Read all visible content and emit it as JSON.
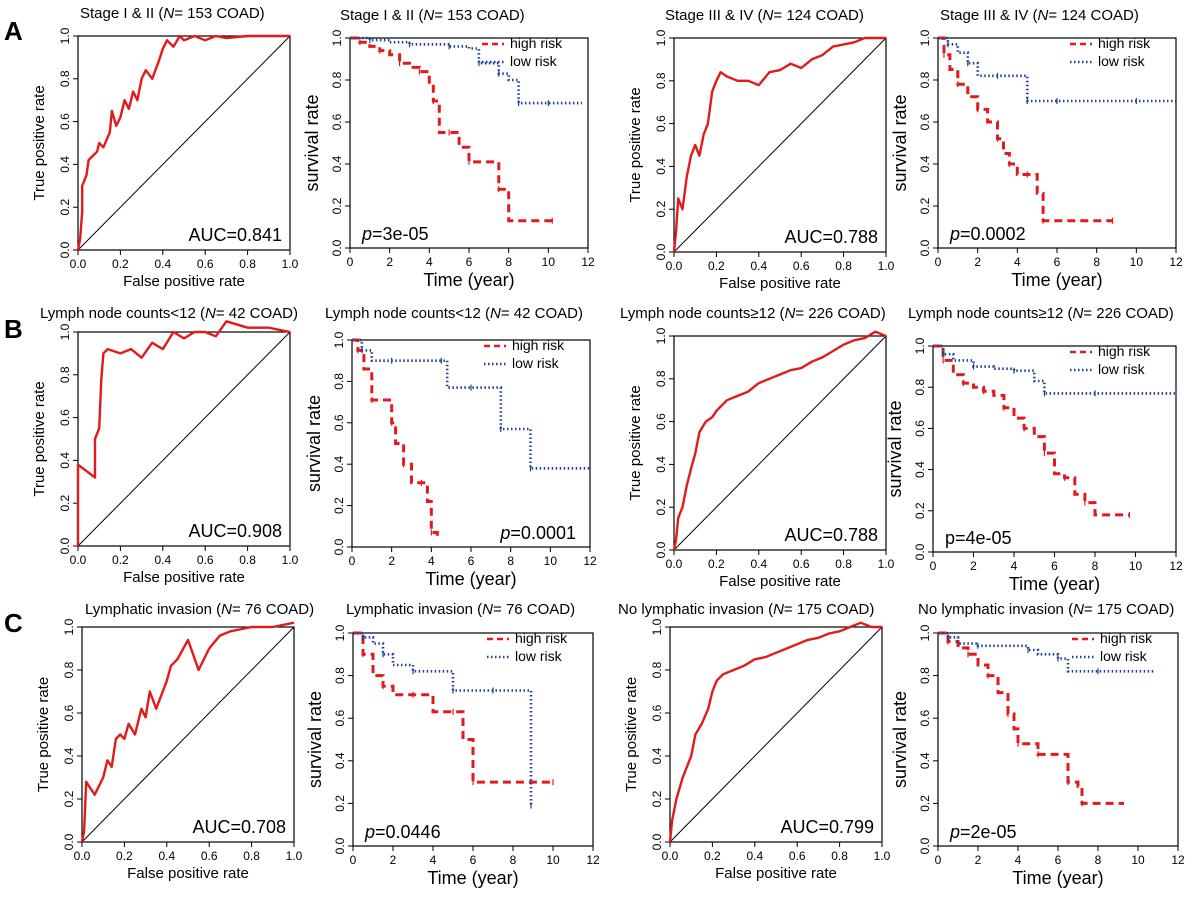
{
  "colors": {
    "roc": "#e31a1c",
    "high_risk": "#e31a1c",
    "low_risk": "#1f3f9a",
    "axis": "#000000"
  },
  "panel_letters": [
    "A",
    "B",
    "C"
  ],
  "chart_data": [
    {
      "type": "line",
      "kind": "roc",
      "title_pre": "Stage I & II (",
      "title_italic": "N",
      "title_post": "= 153 COAD)",
      "xlabel": "False positive rate",
      "ylabel": "True positive rate",
      "xlim": [
        0,
        1
      ],
      "ylim": [
        0,
        1
      ],
      "xticks": [
        "0.0",
        "0.2",
        "0.4",
        "0.6",
        "0.8",
        "1.0"
      ],
      "yticks": [
        "0.0",
        "0.2",
        "0.4",
        "0.6",
        "0.8",
        "1.0"
      ],
      "annotation": "AUC=0.841",
      "x": [
        0,
        0.01,
        0.02,
        0.02,
        0.04,
        0.05,
        0.07,
        0.09,
        0.1,
        0.12,
        0.15,
        0.16,
        0.18,
        0.2,
        0.22,
        0.24,
        0.26,
        0.28,
        0.3,
        0.32,
        0.35,
        0.38,
        0.4,
        0.42,
        0.45,
        0.48,
        0.5,
        0.55,
        0.6,
        0.65,
        0.7,
        0.8,
        0.9,
        1.0
      ],
      "y": [
        0,
        0.05,
        0.18,
        0.3,
        0.35,
        0.42,
        0.44,
        0.46,
        0.5,
        0.48,
        0.55,
        0.65,
        0.58,
        0.62,
        0.7,
        0.66,
        0.74,
        0.7,
        0.8,
        0.84,
        0.8,
        0.88,
        0.94,
        0.98,
        0.95,
        1.0,
        0.98,
        1.0,
        0.98,
        1.0,
        0.99,
        1.0,
        1.0,
        1.0
      ]
    },
    {
      "type": "line",
      "kind": "km",
      "title_pre": "Stage I & II (",
      "title_italic": "N",
      "title_post": "= 153 COAD)",
      "xlabel": "Time (year)",
      "ylabel": "survival rate",
      "xlim": [
        0,
        12
      ],
      "ylim": [
        0,
        1
      ],
      "xticks": [
        "0",
        "2",
        "4",
        "6",
        "8",
        "10",
        "12"
      ],
      "yticks": [
        "0.0",
        "0.2",
        "0.4",
        "0.6",
        "0.8",
        "1.0"
      ],
      "annotation_italic": "p",
      "annotation_rest": "=3e-05",
      "legend": [
        "high risk",
        "low risk"
      ],
      "series": [
        {
          "name": "high risk",
          "x": [
            0,
            0.5,
            1.0,
            1.5,
            2.0,
            2.5,
            3.0,
            3.5,
            4.0,
            4.2,
            4.5,
            5.0,
            5.5,
            6.0,
            7.0,
            7.5,
            8.0,
            10.2
          ],
          "y": [
            1.0,
            0.98,
            0.96,
            0.94,
            0.92,
            0.88,
            0.86,
            0.84,
            0.78,
            0.7,
            0.55,
            0.55,
            0.48,
            0.41,
            0.41,
            0.28,
            0.13,
            0.13
          ]
        },
        {
          "name": "low risk",
          "x": [
            0,
            1.0,
            2.0,
            3.0,
            4.0,
            5.0,
            6.0,
            6.5,
            7.0,
            7.5,
            8.0,
            8.5,
            9.0,
            10.0,
            11.7
          ],
          "y": [
            1.0,
            0.99,
            0.98,
            0.97,
            0.97,
            0.96,
            0.95,
            0.88,
            0.88,
            0.83,
            0.8,
            0.69,
            0.69,
            0.69,
            0.69
          ]
        }
      ]
    },
    {
      "type": "line",
      "kind": "roc",
      "title_pre": "Stage  III & IV (",
      "title_italic": "N",
      "title_post": "= 124 COAD)",
      "xlabel": "False positive rate",
      "ylabel": "True positive rate",
      "xlim": [
        0,
        1
      ],
      "ylim": [
        0,
        1
      ],
      "xticks": [
        "0.0",
        "0.2",
        "0.4",
        "0.6",
        "0.8",
        "1.0"
      ],
      "yticks": [
        "0.0",
        "0.2",
        "0.4",
        "0.6",
        "0.8",
        "1.0"
      ],
      "annotation": "AUC=0.788",
      "x": [
        0,
        0.01,
        0.02,
        0.04,
        0.06,
        0.08,
        0.1,
        0.12,
        0.14,
        0.16,
        0.18,
        0.2,
        0.22,
        0.25,
        0.3,
        0.35,
        0.4,
        0.45,
        0.5,
        0.55,
        0.6,
        0.65,
        0.7,
        0.75,
        0.8,
        0.85,
        0.9,
        0.95,
        1.0
      ],
      "y": [
        0,
        0.1,
        0.25,
        0.2,
        0.35,
        0.45,
        0.5,
        0.45,
        0.55,
        0.6,
        0.75,
        0.8,
        0.84,
        0.82,
        0.8,
        0.8,
        0.78,
        0.84,
        0.85,
        0.88,
        0.86,
        0.9,
        0.92,
        0.96,
        0.97,
        0.98,
        1.0,
        1.0,
        1.0
      ]
    },
    {
      "type": "line",
      "kind": "km",
      "title_pre": "Stage  III & IV (",
      "title_italic": "N",
      "title_post": "= 124 COAD)",
      "xlabel": "Time (year)",
      "ylabel": "survival rate",
      "xlim": [
        0,
        12
      ],
      "ylim": [
        0,
        1
      ],
      "xticks": [
        "0",
        "2",
        "4",
        "6",
        "8",
        "10",
        "12"
      ],
      "yticks": [
        "0.0",
        "0.2",
        "0.4",
        "0.6",
        "0.8",
        "1.0"
      ],
      "annotation_italic": "p",
      "annotation_rest": "=0.0002",
      "legend": [
        "high risk",
        "low risk"
      ],
      "series": [
        {
          "name": "high risk",
          "x": [
            0,
            0.3,
            0.6,
            1.0,
            1.5,
            2.0,
            2.5,
            3.0,
            3.3,
            3.6,
            4.0,
            4.5,
            5.0,
            5.3,
            6.0,
            8.8
          ],
          "y": [
            1.0,
            0.92,
            0.85,
            0.78,
            0.72,
            0.66,
            0.6,
            0.52,
            0.45,
            0.4,
            0.35,
            0.35,
            0.26,
            0.13,
            0.13,
            0.13
          ]
        },
        {
          "name": "low risk",
          "x": [
            0,
            0.5,
            1.0,
            1.5,
            2.0,
            3.0,
            4.0,
            4.5,
            5.0,
            6.0,
            8.0,
            10.0,
            12.0
          ],
          "y": [
            1.0,
            0.97,
            0.93,
            0.88,
            0.82,
            0.82,
            0.82,
            0.7,
            0.7,
            0.7,
            0.7,
            0.7,
            0.7
          ]
        }
      ]
    },
    {
      "type": "line",
      "kind": "roc",
      "title_pre": "Lymph node counts<12 (",
      "title_italic": "N",
      "title_post": "= 42 COAD)",
      "xlabel": "False positive rate",
      "ylabel": "True positive rate",
      "xlim": [
        0,
        1
      ],
      "ylim": [
        0,
        1
      ],
      "xticks": [
        "0.0",
        "0.2",
        "0.4",
        "0.6",
        "0.8",
        "1.0"
      ],
      "yticks": [
        "0.0",
        "0.2",
        "0.4",
        "0.6",
        "0.8",
        "1.0"
      ],
      "annotation": "AUC=0.908",
      "x": [
        0,
        0.0,
        0.04,
        0.08,
        0.08,
        0.1,
        0.11,
        0.12,
        0.14,
        0.2,
        0.25,
        0.3,
        0.35,
        0.4,
        0.45,
        0.5,
        0.55,
        0.6,
        0.65,
        0.7,
        0.8,
        0.9,
        1.0
      ],
      "y": [
        0,
        0.38,
        0.35,
        0.32,
        0.5,
        0.55,
        0.78,
        0.9,
        0.92,
        0.9,
        0.92,
        0.88,
        0.95,
        0.92,
        1.0,
        0.97,
        1.0,
        1.0,
        0.98,
        1.05,
        1.02,
        1.02,
        1.0
      ]
    },
    {
      "type": "line",
      "kind": "km",
      "title_pre": "Lymph node counts<12 (",
      "title_italic": "N",
      "title_post": "= 42 COAD)",
      "xlabel": "Time (year)",
      "ylabel": "survival rate",
      "xlim": [
        0,
        12
      ],
      "ylim": [
        0,
        1
      ],
      "xticks": [
        "0",
        "2",
        "4",
        "6",
        "8",
        "10",
        "12"
      ],
      "yticks": [
        "0.0",
        "0.2",
        "0.4",
        "0.6",
        "0.8",
        "1.0"
      ],
      "annotation_italic": "p",
      "annotation_rest": "=0.0001",
      "legend": [
        "high risk",
        "low risk"
      ],
      "series": [
        {
          "name": "high risk",
          "x": [
            0,
            0.3,
            0.6,
            1.0,
            1.5,
            2.0,
            2.2,
            2.6,
            3.0,
            3.5,
            3.8,
            4.0,
            4.3
          ],
          "y": [
            1.0,
            0.95,
            0.86,
            0.71,
            0.71,
            0.6,
            0.5,
            0.4,
            0.31,
            0.31,
            0.22,
            0.07,
            0.03
          ]
        },
        {
          "name": "low risk",
          "x": [
            0,
            0.5,
            1.0,
            2.0,
            3.0,
            4.5,
            4.8,
            6.0,
            7.0,
            7.5,
            8.8,
            9.0,
            12.0
          ],
          "y": [
            1.0,
            0.95,
            0.9,
            0.9,
            0.9,
            0.9,
            0.77,
            0.77,
            0.77,
            0.57,
            0.57,
            0.38,
            0.38
          ]
        }
      ]
    },
    {
      "type": "line",
      "kind": "roc",
      "title_pre": "Lymph node counts≥12 (",
      "title_italic": "N",
      "title_post": "= 226 COAD)",
      "xlabel": "False positive rate",
      "ylabel": "True positive rate",
      "xlim": [
        0,
        1
      ],
      "ylim": [
        0,
        1
      ],
      "xticks": [
        "0.0",
        "0.2",
        "0.4",
        "0.6",
        "0.8",
        "1.0"
      ],
      "yticks": [
        "0.0",
        "0.2",
        "0.4",
        "0.6",
        "0.8",
        "1.0"
      ],
      "annotation": "AUC=0.788",
      "x": [
        0,
        0.01,
        0.02,
        0.04,
        0.06,
        0.08,
        0.1,
        0.12,
        0.15,
        0.18,
        0.2,
        0.25,
        0.3,
        0.35,
        0.4,
        0.45,
        0.5,
        0.55,
        0.6,
        0.65,
        0.7,
        0.75,
        0.8,
        0.85,
        0.9,
        0.95,
        1.0
      ],
      "y": [
        0,
        0.05,
        0.15,
        0.2,
        0.3,
        0.38,
        0.45,
        0.55,
        0.6,
        0.62,
        0.65,
        0.7,
        0.72,
        0.74,
        0.78,
        0.8,
        0.82,
        0.84,
        0.85,
        0.88,
        0.9,
        0.93,
        0.96,
        0.98,
        0.99,
        1.02,
        1.0
      ]
    },
    {
      "type": "line",
      "kind": "km",
      "title_pre": "Lymph node counts≥12 (",
      "title_italic": "N",
      "title_post": "= 226 COAD)",
      "xlabel": "Time (year)",
      "ylabel": "survival rate",
      "xlim": [
        0,
        12
      ],
      "ylim": [
        0,
        1
      ],
      "xticks": [
        "0",
        "2",
        "4",
        "6",
        "8",
        "10",
        "12"
      ],
      "yticks": [
        "0.0",
        "0.2",
        "0.4",
        "0.6",
        "0.8",
        "1.0"
      ],
      "annotation_italic": "",
      "annotation_rest": "p=4e-05",
      "legend": [
        "high risk",
        "low risk"
      ],
      "series": [
        {
          "name": "high risk",
          "x": [
            0,
            0.5,
            1.0,
            1.5,
            2.0,
            2.5,
            3.0,
            3.5,
            4.0,
            4.5,
            5.0,
            5.5,
            6.0,
            6.5,
            7.0,
            7.5,
            8.0,
            9.7
          ],
          "y": [
            1.0,
            0.93,
            0.86,
            0.82,
            0.8,
            0.78,
            0.76,
            0.7,
            0.65,
            0.6,
            0.56,
            0.48,
            0.38,
            0.36,
            0.28,
            0.24,
            0.18,
            0.18
          ]
        },
        {
          "name": "low risk",
          "x": [
            0,
            0.5,
            1.0,
            2.0,
            3.0,
            4.0,
            5.0,
            5.5,
            6.0,
            8.0,
            10.0,
            12.0
          ],
          "y": [
            1.0,
            0.96,
            0.93,
            0.9,
            0.89,
            0.88,
            0.83,
            0.77,
            0.77,
            0.77,
            0.77,
            0.77
          ]
        }
      ]
    },
    {
      "type": "line",
      "kind": "roc",
      "title_pre": "Lymphatic invasion (",
      "title_italic": "N",
      "title_post": "= 76 COAD)",
      "xlabel": "False positive rate",
      "ylabel": "True positive rate",
      "xlim": [
        0,
        1
      ],
      "ylim": [
        0,
        1
      ],
      "xticks": [
        "0.0",
        "0.2",
        "0.4",
        "0.6",
        "0.8",
        "1.0"
      ],
      "yticks": [
        "0.0",
        "0.2",
        "0.4",
        "0.6",
        "0.8",
        "1.0"
      ],
      "annotation": "AUC=0.708",
      "x": [
        0,
        0.01,
        0.02,
        0.06,
        0.1,
        0.12,
        0.14,
        0.16,
        0.18,
        0.2,
        0.22,
        0.25,
        0.28,
        0.3,
        0.32,
        0.35,
        0.4,
        0.42,
        0.45,
        0.5,
        0.55,
        0.6,
        0.65,
        0.7,
        0.8,
        0.9,
        1.0
      ],
      "y": [
        0,
        0.05,
        0.28,
        0.22,
        0.3,
        0.38,
        0.35,
        0.48,
        0.5,
        0.48,
        0.55,
        0.5,
        0.62,
        0.58,
        0.7,
        0.62,
        0.75,
        0.82,
        0.85,
        0.94,
        0.8,
        0.9,
        0.96,
        0.98,
        1.0,
        1.0,
        1.02
      ]
    },
    {
      "type": "line",
      "kind": "km",
      "title_pre": "Lymphatic invasion (",
      "title_italic": "N",
      "title_post": "= 76 COAD)",
      "xlabel": "Time (year)",
      "ylabel": "survival rate",
      "xlim": [
        0,
        12
      ],
      "ylim": [
        0,
        1
      ],
      "xticks": [
        "0",
        "2",
        "4",
        "6",
        "8",
        "10",
        "12"
      ],
      "yticks": [
        "0.0",
        "0.2",
        "0.4",
        "0.6",
        "0.8",
        "1.0"
      ],
      "annotation_italic": "p",
      "annotation_rest": "=0.0446",
      "legend": [
        "high risk",
        "low risk"
      ],
      "series": [
        {
          "name": "high risk",
          "x": [
            0,
            0.5,
            1.0,
            1.5,
            2.0,
            3.0,
            4.0,
            5.0,
            5.5,
            6.0,
            8.0,
            10.0
          ],
          "y": [
            1.0,
            0.9,
            0.8,
            0.75,
            0.71,
            0.71,
            0.63,
            0.63,
            0.5,
            0.3,
            0.3,
            0.3
          ]
        },
        {
          "name": "low risk",
          "x": [
            0,
            0.5,
            1.0,
            1.5,
            2.0,
            3.0,
            4.0,
            5.0,
            6.0,
            7.0,
            8.9,
            8.9
          ],
          "y": [
            1.0,
            0.98,
            0.95,
            0.9,
            0.85,
            0.82,
            0.82,
            0.73,
            0.73,
            0.73,
            0.73,
            0.19
          ]
        }
      ]
    },
    {
      "type": "line",
      "kind": "roc",
      "title_pre": "No lymphatic invasion (",
      "title_italic": "N",
      "title_post": "= 175 COAD)",
      "xlabel": "False positive rate",
      "ylabel": "True positive rate",
      "xlim": [
        0,
        1
      ],
      "ylim": [
        0,
        1
      ],
      "xticks": [
        "0.0",
        "0.2",
        "0.4",
        "0.6",
        "0.8",
        "1.0"
      ],
      "yticks": [
        "0.0",
        "0.2",
        "0.4",
        "0.6",
        "0.8",
        "1.0"
      ],
      "annotation": "AUC=0.799",
      "x": [
        0,
        0.01,
        0.03,
        0.06,
        0.1,
        0.12,
        0.15,
        0.18,
        0.2,
        0.22,
        0.25,
        0.3,
        0.35,
        0.4,
        0.45,
        0.5,
        0.55,
        0.6,
        0.65,
        0.7,
        0.75,
        0.8,
        0.85,
        0.9,
        0.95,
        1.0
      ],
      "y": [
        0,
        0.1,
        0.2,
        0.3,
        0.4,
        0.5,
        0.55,
        0.62,
        0.7,
        0.75,
        0.78,
        0.8,
        0.82,
        0.85,
        0.86,
        0.88,
        0.9,
        0.92,
        0.94,
        0.95,
        0.97,
        0.98,
        1.0,
        1.02,
        1.0,
        1.0
      ]
    },
    {
      "type": "line",
      "kind": "km",
      "title_pre": "No lymphatic invasion (",
      "title_italic": "N",
      "title_post": "= 175 COAD)",
      "xlabel": "Time (year)",
      "ylabel": "survival rate",
      "xlim": [
        0,
        12
      ],
      "ylim": [
        0,
        1
      ],
      "xticks": [
        "0",
        "2",
        "4",
        "6",
        "8",
        "10",
        "12"
      ],
      "yticks": [
        "0.0",
        "0.2",
        "0.4",
        "0.6",
        "0.8",
        "1.0"
      ],
      "annotation_italic": "p",
      "annotation_rest": "=2e-05",
      "legend": [
        "high risk",
        "low risk"
      ],
      "series": [
        {
          "name": "high risk",
          "x": [
            0,
            0.5,
            1.0,
            1.5,
            2.0,
            2.5,
            3.0,
            3.5,
            3.8,
            4.0,
            4.5,
            5.0,
            6.0,
            6.5,
            7.0,
            7.2,
            9.3
          ],
          "y": [
            1.0,
            0.96,
            0.93,
            0.9,
            0.85,
            0.8,
            0.72,
            0.62,
            0.55,
            0.48,
            0.48,
            0.43,
            0.43,
            0.3,
            0.28,
            0.2,
            0.2
          ]
        },
        {
          "name": "low risk",
          "x": [
            0,
            0.5,
            1.0,
            2.0,
            4.0,
            4.5,
            5.0,
            6.0,
            6.5,
            8.0,
            10.8
          ],
          "y": [
            1.0,
            0.98,
            0.95,
            0.94,
            0.94,
            0.92,
            0.9,
            0.88,
            0.82,
            0.82,
            0.82
          ]
        }
      ]
    }
  ]
}
